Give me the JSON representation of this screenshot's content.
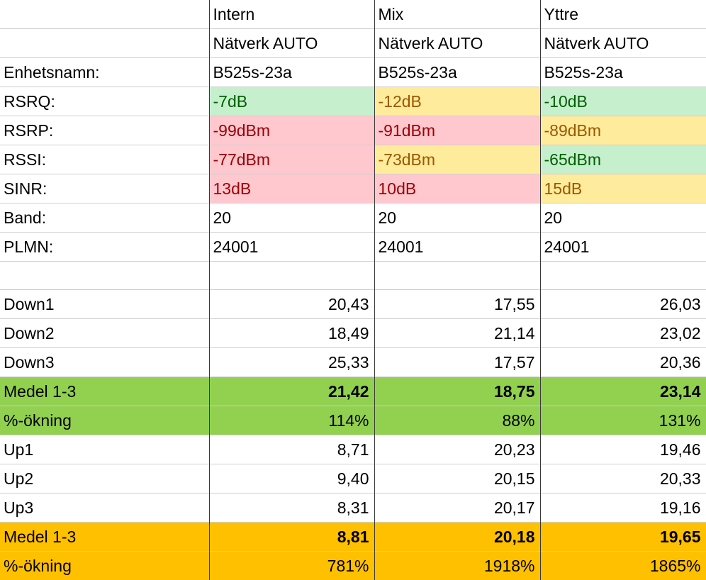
{
  "columns": [
    "Intern",
    "Mix",
    "Yttre"
  ],
  "network": [
    "Nätverk AUTO",
    "Nätverk AUTO",
    "Nätverk AUTO"
  ],
  "info_rows": [
    {
      "label": "Enhetsnamn:",
      "values": [
        "B525s-23a",
        "B525s-23a",
        "B525s-23a"
      ]
    },
    {
      "label": "RSRQ:",
      "values": [
        "-7dB",
        "-12dB",
        "-10dB"
      ]
    },
    {
      "label": "RSRP:",
      "values": [
        "-99dBm",
        "-91dBm",
        "-89dBm"
      ]
    },
    {
      "label": "RSSI:",
      "values": [
        "-77dBm",
        "-73dBm",
        "-65dBm"
      ]
    },
    {
      "label": "SINR:",
      "values": [
        "13dB",
        "10dB",
        "15dB"
      ]
    },
    {
      "label": "Band:",
      "values": [
        "20",
        "20",
        "20"
      ]
    },
    {
      "label": "PLMN:",
      "values": [
        "24001",
        "24001",
        "24001"
      ]
    }
  ],
  "download": {
    "rows": [
      {
        "label": "Down1",
        "values": [
          "20,43",
          "17,55",
          "26,03"
        ]
      },
      {
        "label": "Down2",
        "values": [
          "18,49",
          "21,14",
          "23,02"
        ]
      },
      {
        "label": "Down3",
        "values": [
          "25,33",
          "17,57",
          "20,36"
        ]
      }
    ],
    "mean": {
      "label": "Medel 1-3",
      "values": [
        "21,42",
        "18,75",
        "23,14"
      ]
    },
    "increase": {
      "label": "%-ökning",
      "values": [
        "114%",
        "88%",
        "131%"
      ]
    }
  },
  "upload": {
    "rows": [
      {
        "label": "Up1",
        "values": [
          "8,71",
          "20,23",
          "19,46"
        ]
      },
      {
        "label": "Up2",
        "values": [
          "9,40",
          "20,15",
          "20,33"
        ]
      },
      {
        "label": "Up3",
        "values": [
          "8,31",
          "20,17",
          "19,16"
        ]
      }
    ],
    "mean": {
      "label": "Medel 1-3",
      "values": [
        "8,81",
        "20,18",
        "19,65"
      ]
    },
    "increase": {
      "label": "%-ökning",
      "values": [
        "781%",
        "1918%",
        "1865%"
      ]
    }
  },
  "colors": {
    "good_bg": "#c6efce",
    "good_text": "#006100",
    "bad_bg": "#ffc7ce",
    "bad_text": "#9c0006",
    "mid_bg": "#ffeb9c",
    "mid_text": "#9c5700",
    "download_summary": "#92d050",
    "upload_summary": "#ffc000"
  }
}
